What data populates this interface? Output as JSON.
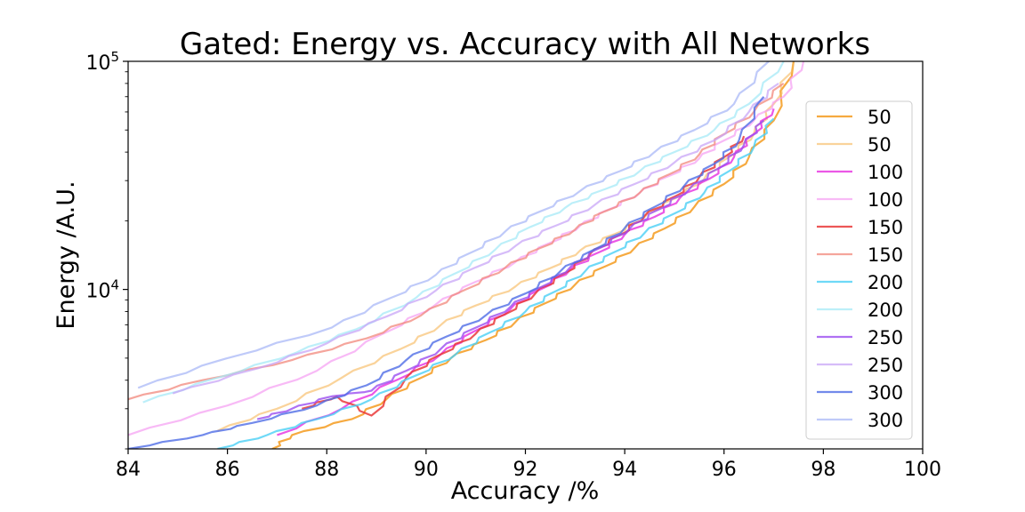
{
  "chart_data": {
    "type": "line",
    "title": "Gated: Energy vs. Accuracy with All Networks",
    "xlabel": "Accuracy /%",
    "ylabel": "Energy /A.U.",
    "xlim": [
      84,
      100
    ],
    "ylim": [
      2000,
      100000
    ],
    "yscale": "log",
    "xticks": [
      84,
      86,
      88,
      90,
      92,
      94,
      96,
      98,
      100
    ],
    "yticks": [
      {
        "value": 10000,
        "base": "10",
        "exp": "4"
      },
      {
        "value": 100000,
        "base": "10",
        "exp": "5"
      }
    ],
    "legend_position": "right",
    "grid": false,
    "series": [
      {
        "name": "50",
        "color": "#f59b1e",
        "alpha": 0.85,
        "x": [
          86.9,
          87.3,
          88.5,
          89.2,
          89.9,
          90.5,
          91.2,
          91.8,
          92.4,
          93.0,
          93.6,
          94.2,
          94.8,
          95.4,
          96.0,
          96.5,
          97.0,
          97.4
        ],
        "y": [
          2000,
          2300,
          2700,
          3300,
          4100,
          5000,
          6000,
          7200,
          8700,
          10500,
          12600,
          15200,
          18500,
          23000,
          29000,
          38000,
          55000,
          100000
        ]
      },
      {
        "name": "50",
        "color": "#f7b657",
        "alpha": 0.6,
        "x": [
          85.8,
          87.0,
          88.3,
          89.5,
          90.3,
          91.0,
          91.8,
          92.5,
          93.1,
          93.8,
          94.4,
          95.0,
          95.6,
          96.1,
          96.6,
          97.0,
          97.4
        ],
        "y": [
          2400,
          3000,
          4100,
          5500,
          7000,
          8500,
          10300,
          12400,
          14800,
          17500,
          20800,
          25000,
          30500,
          38000,
          48000,
          65000,
          100000
        ]
      },
      {
        "name": "100",
        "color": "#e62ee0",
        "alpha": 0.8,
        "x": [
          87.0,
          88.3,
          89.4,
          90.3,
          91.0,
          91.7,
          92.3,
          92.9,
          93.5,
          94.0,
          94.6,
          95.1,
          95.7,
          96.2,
          96.6,
          97.0
        ],
        "y": [
          2300,
          3000,
          4000,
          5200,
          6600,
          8200,
          10000,
          12200,
          14600,
          17400,
          20800,
          25000,
          30500,
          38000,
          48000,
          62000
        ]
      },
      {
        "name": "100",
        "color": "#f59cf2",
        "alpha": 0.7,
        "x": [
          84.0,
          86.0,
          87.8,
          89.2,
          90.2,
          91.0,
          91.8,
          92.5,
          93.1,
          93.7,
          94.3,
          94.9,
          95.5,
          96.0,
          96.6,
          97.2,
          97.6
        ],
        "y": [
          2300,
          3100,
          4400,
          6500,
          8600,
          10800,
          13200,
          16000,
          19000,
          22500,
          26500,
          31500,
          37500,
          45000,
          55000,
          70000,
          100000
        ]
      },
      {
        "name": "150",
        "color": "#ea3a3a",
        "alpha": 0.85,
        "x": [
          87.5,
          88.2,
          88.9,
          89.6,
          90.3,
          91.0,
          91.6,
          92.2,
          92.8,
          93.3,
          93.9,
          94.4,
          95.0,
          95.5,
          96.0,
          96.4
        ],
        "y": [
          3000,
          3400,
          2800,
          4100,
          5200,
          6400,
          7800,
          9600,
          11800,
          14300,
          17300,
          21000,
          25500,
          31000,
          38000,
          47000
        ]
      },
      {
        "name": "150",
        "color": "#f2877b",
        "alpha": 0.75,
        "x": [
          84.0,
          85.5,
          87.3,
          88.8,
          89.9,
          90.8,
          91.6,
          92.3,
          93.0,
          93.6,
          94.3,
          94.9,
          95.5,
          96.0,
          96.6,
          97.2
        ],
        "y": [
          3300,
          4000,
          4900,
          6100,
          7700,
          10000,
          12500,
          15200,
          18300,
          22000,
          26500,
          32000,
          39000,
          48000,
          60000,
          80000
        ]
      },
      {
        "name": "200",
        "color": "#4ad0f5",
        "alpha": 0.8,
        "x": [
          85.8,
          86.8,
          87.8,
          88.9,
          89.8,
          90.6,
          91.3,
          92.0,
          92.6,
          93.2,
          93.8,
          94.4,
          95.0,
          95.6,
          96.1,
          96.6,
          97.0
        ],
        "y": [
          2000,
          2300,
          2700,
          3300,
          4200,
          5200,
          6500,
          8000,
          9800,
          12000,
          14600,
          17700,
          21500,
          26500,
          33000,
          42000,
          56000
        ]
      },
      {
        "name": "200",
        "color": "#a6eaf7",
        "alpha": 0.75,
        "x": [
          84.3,
          85.8,
          87.4,
          88.6,
          89.8,
          90.6,
          91.4,
          92.1,
          92.8,
          93.6,
          94.3,
          95.0,
          95.8,
          96.5,
          97.2
        ],
        "y": [
          3200,
          4100,
          5300,
          6700,
          9200,
          11800,
          15000,
          18800,
          22800,
          27500,
          33000,
          40000,
          50000,
          65000,
          100000
        ]
      },
      {
        "name": "250",
        "color": "#9b4ef0",
        "alpha": 0.8,
        "x": [
          86.6,
          87.3,
          88.1,
          88.9,
          89.6,
          90.3,
          91.0,
          91.7,
          92.3,
          92.9,
          93.5,
          94.1,
          94.7,
          95.3,
          95.9,
          96.4,
          96.8
        ],
        "y": [
          2700,
          3000,
          3400,
          3600,
          4400,
          5500,
          6800,
          8400,
          10200,
          12500,
          15200,
          18500,
          22500,
          27500,
          34000,
          43000,
          55000
        ]
      },
      {
        "name": "250",
        "color": "#c8a6f7",
        "alpha": 0.75,
        "x": [
          84.9,
          86.6,
          88.0,
          89.2,
          90.2,
          91.0,
          91.8,
          92.6,
          93.4,
          94.2,
          95.0,
          95.8,
          96.5,
          97.1
        ],
        "y": [
          3500,
          4500,
          5800,
          7600,
          9900,
          12500,
          15500,
          19000,
          23500,
          29000,
          36000,
          45000,
          60000,
          80000
        ]
      },
      {
        "name": "300",
        "color": "#4f6de6",
        "alpha": 0.8,
        "x": [
          84.0,
          85.5,
          86.5,
          87.8,
          88.8,
          89.6,
          90.4,
          91.2,
          92.0,
          92.7,
          93.4,
          94.0,
          94.6,
          95.2,
          95.8,
          96.3,
          96.8
        ],
        "y": [
          2000,
          2300,
          2600,
          3100,
          3800,
          4900,
          6200,
          7700,
          9600,
          12000,
          15000,
          18600,
          23000,
          28500,
          35500,
          45000,
          70000
        ]
      },
      {
        "name": "300",
        "color": "#aab8f7",
        "alpha": 0.75,
        "x": [
          84.2,
          86.0,
          88.1,
          89.3,
          90.2,
          90.9,
          91.6,
          92.3,
          93.1,
          93.9,
          94.6,
          95.4,
          96.2,
          96.9
        ],
        "y": [
          3700,
          5000,
          6800,
          9200,
          11600,
          14500,
          18000,
          22000,
          27000,
          33000,
          40000,
          50000,
          65000,
          100000
        ]
      }
    ]
  }
}
